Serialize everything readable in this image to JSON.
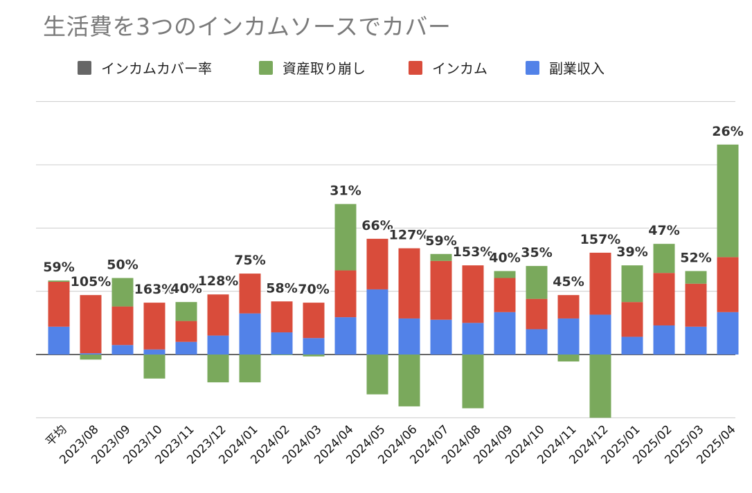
{
  "title": "生活費を3つのインカムソースでカバー",
  "chart_data": {
    "type": "bar",
    "stacked": true,
    "title": "生活費を3つのインカムソースでカバー",
    "xlabel": "",
    "ylabel": "",
    "ylim": [
      -100,
      400
    ],
    "grid": true,
    "y_tick_labels_shown": false,
    "legend_position": "top",
    "categories": [
      "平均",
      "2023/08",
      "2023/09",
      "2023/10",
      "2023/11",
      "2023/12",
      "2024/01",
      "2024/02",
      "2024/03",
      "2024/04",
      "2024/05",
      "2024/06",
      "2024/07",
      "2024/08",
      "2024/09",
      "2024/10",
      "2024/11",
      "2024/12",
      "2025/01",
      "2025/02",
      "2025/03",
      "2025/04"
    ],
    "series": [
      {
        "name": "インカムカバー率",
        "color": "#666666",
        "values": [
          "59%",
          "105%",
          "50%",
          "163%",
          "40%",
          "128%",
          "75%",
          "58%",
          "70%",
          "31%",
          "66%",
          "127%",
          "59%",
          "153%",
          "40%",
          "35%",
          "45%",
          "157%",
          "39%",
          "47%",
          "52%",
          "26%"
        ]
      },
      {
        "name": "資産取り崩し",
        "color": "#7aa95c",
        "values": [
          2,
          -8,
          45,
          -38,
          30,
          -44,
          -44,
          -1,
          -3,
          105,
          -63,
          -82,
          11,
          -85,
          11,
          52,
          -11,
          -100,
          58,
          46,
          20,
          178
        ]
      },
      {
        "name": "インカム",
        "color": "#d94c3b",
        "values": [
          71,
          92,
          61,
          74,
          33,
          65,
          63,
          49,
          56,
          74,
          80,
          111,
          93,
          91,
          54,
          48,
          37,
          98,
          55,
          83,
          68,
          87
        ]
      },
      {
        "name": "副業収入",
        "color": "#5282e8",
        "values": [
          44,
          2,
          15,
          8,
          20,
          30,
          65,
          35,
          26,
          59,
          103,
          57,
          55,
          50,
          67,
          40,
          57,
          63,
          28,
          46,
          44,
          67
        ]
      }
    ]
  }
}
